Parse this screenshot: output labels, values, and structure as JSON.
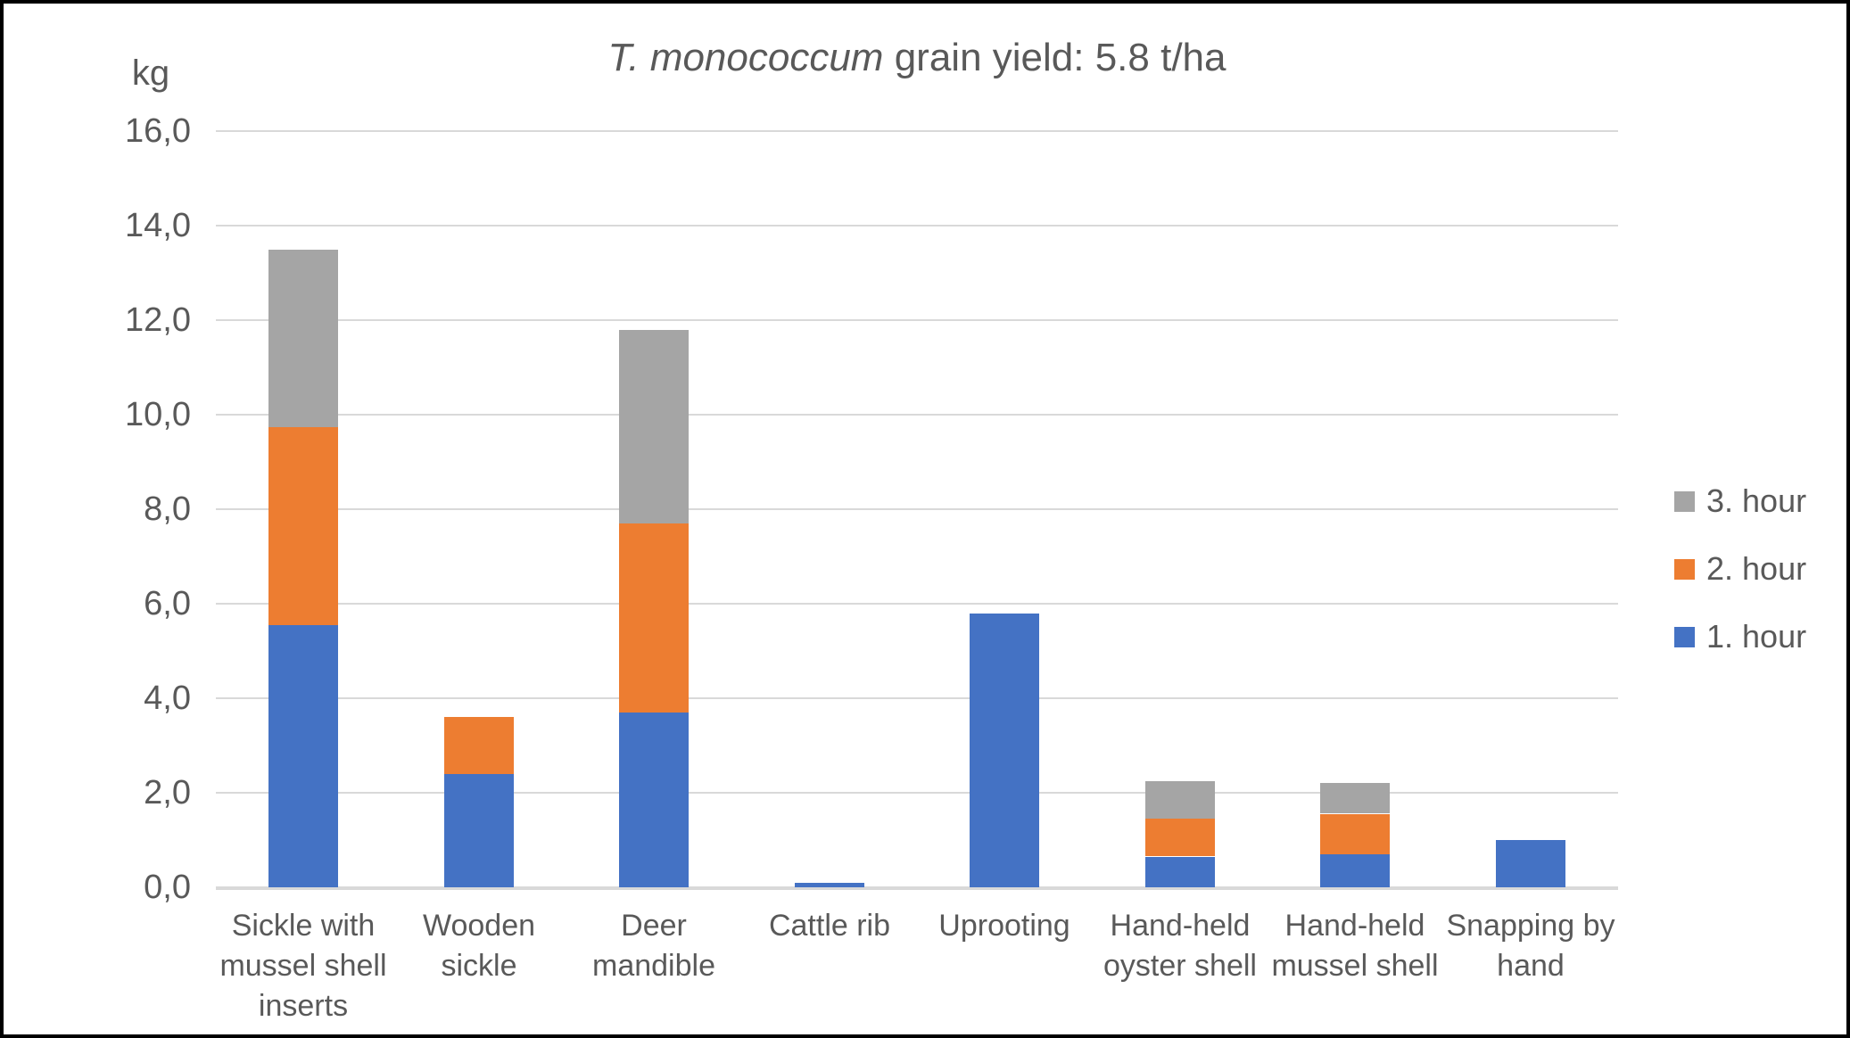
{
  "title": {
    "italic_part": "T. monococcum",
    "regular_part": " grain yield: 5.8 t/ha"
  },
  "chart_data": {
    "type": "bar",
    "stacked": true,
    "title": "T. monococcum grain yield: 5.8 t/ha",
    "ylabel": "kg",
    "ylim": [
      0,
      16
    ],
    "ytick_step": 2,
    "ytick_labels": [
      "0,0",
      "2,0",
      "4,0",
      "6,0",
      "8,0",
      "10,0",
      "12,0",
      "14,0",
      "16,0"
    ],
    "grid": true,
    "legend_position": "right",
    "legend_order": [
      "3. hour",
      "2. hour",
      "1. hour"
    ],
    "categories": [
      "Sickle with mussel shell inserts",
      "Wooden sickle",
      "Deer mandible",
      "Cattle rib",
      "Uprooting",
      "Hand-held oyster shell",
      "Hand-held mussel shell",
      "Snapping by hand"
    ],
    "series": [
      {
        "name": "1. hour",
        "color": "#4472C4",
        "values": [
          5.55,
          2.4,
          3.7,
          0.1,
          5.8,
          0.65,
          0.7,
          1.0
        ]
      },
      {
        "name": "2. hour",
        "color": "#ED7D31",
        "values": [
          4.2,
          1.2,
          4.0,
          0,
          0,
          0.8,
          0.85,
          0
        ]
      },
      {
        "name": "3. hour",
        "color": "#A5A5A5",
        "values": [
          3.75,
          0,
          4.1,
          0,
          0,
          0.8,
          0.65,
          0
        ]
      }
    ]
  }
}
